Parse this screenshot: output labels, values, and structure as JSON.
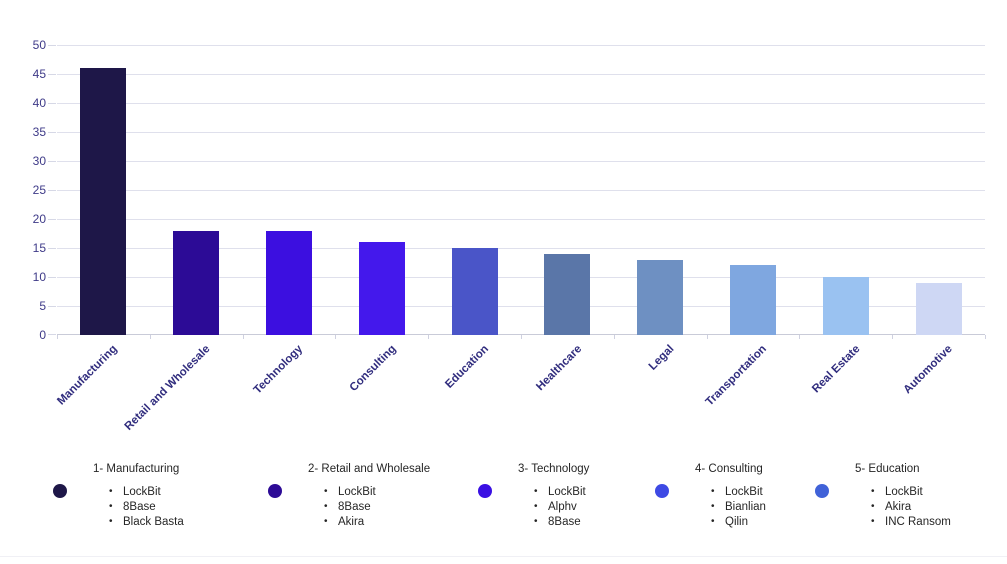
{
  "chart_data": {
    "type": "bar",
    "title": "",
    "xlabel": "",
    "ylabel": "",
    "categories": [
      "Manufacturing",
      "Retail and Wholesale",
      "Technology",
      "Consulting",
      "Education",
      "Healthcare",
      "Legal",
      "Transportation",
      "Real Estate",
      "Automotive"
    ],
    "values": [
      46,
      18,
      18,
      16,
      15,
      14,
      13,
      12,
      10,
      9
    ],
    "bar_colors": [
      "#1e1748",
      "#2c0b96",
      "#3c0fe0",
      "#4418ec",
      "#4a55c8",
      "#5a76a8",
      "#6e90c2",
      "#7fa7e0",
      "#9ac2f1",
      "#ced7f4"
    ],
    "ylim": [
      0,
      50
    ],
    "yticks": [
      0,
      5,
      10,
      15,
      20,
      25,
      30,
      35,
      40,
      45,
      50
    ],
    "grid": "horizontal",
    "legend_position": "bottom",
    "axis_label_color": "#3e3a88",
    "category_label_color": "#312d7e",
    "gridline_color": "#dfe0ec"
  },
  "legend": {
    "groups": [
      {
        "marker_color": "#1e1748",
        "title": "1- Manufacturing",
        "items": [
          "LockBit",
          "8Base",
          "Black Basta"
        ]
      },
      {
        "marker_color": "#2d0b96",
        "title": "2- Retail and Wholesale",
        "items": [
          "LockBit",
          "8Base",
          "Akira"
        ]
      },
      {
        "marker_color": "#3a10e3",
        "title": "3- Technology",
        "items": [
          "LockBit",
          "Alphv",
          "8Base"
        ]
      },
      {
        "marker_color": "#3e4ae4",
        "title": "4- Consulting",
        "items": [
          "LockBit",
          "Bianlian",
          "Qilin"
        ]
      },
      {
        "marker_color": "#4062d8",
        "title": "5- Education",
        "items": [
          "LockBit",
          "Akira",
          "INC Ransom"
        ]
      }
    ]
  }
}
